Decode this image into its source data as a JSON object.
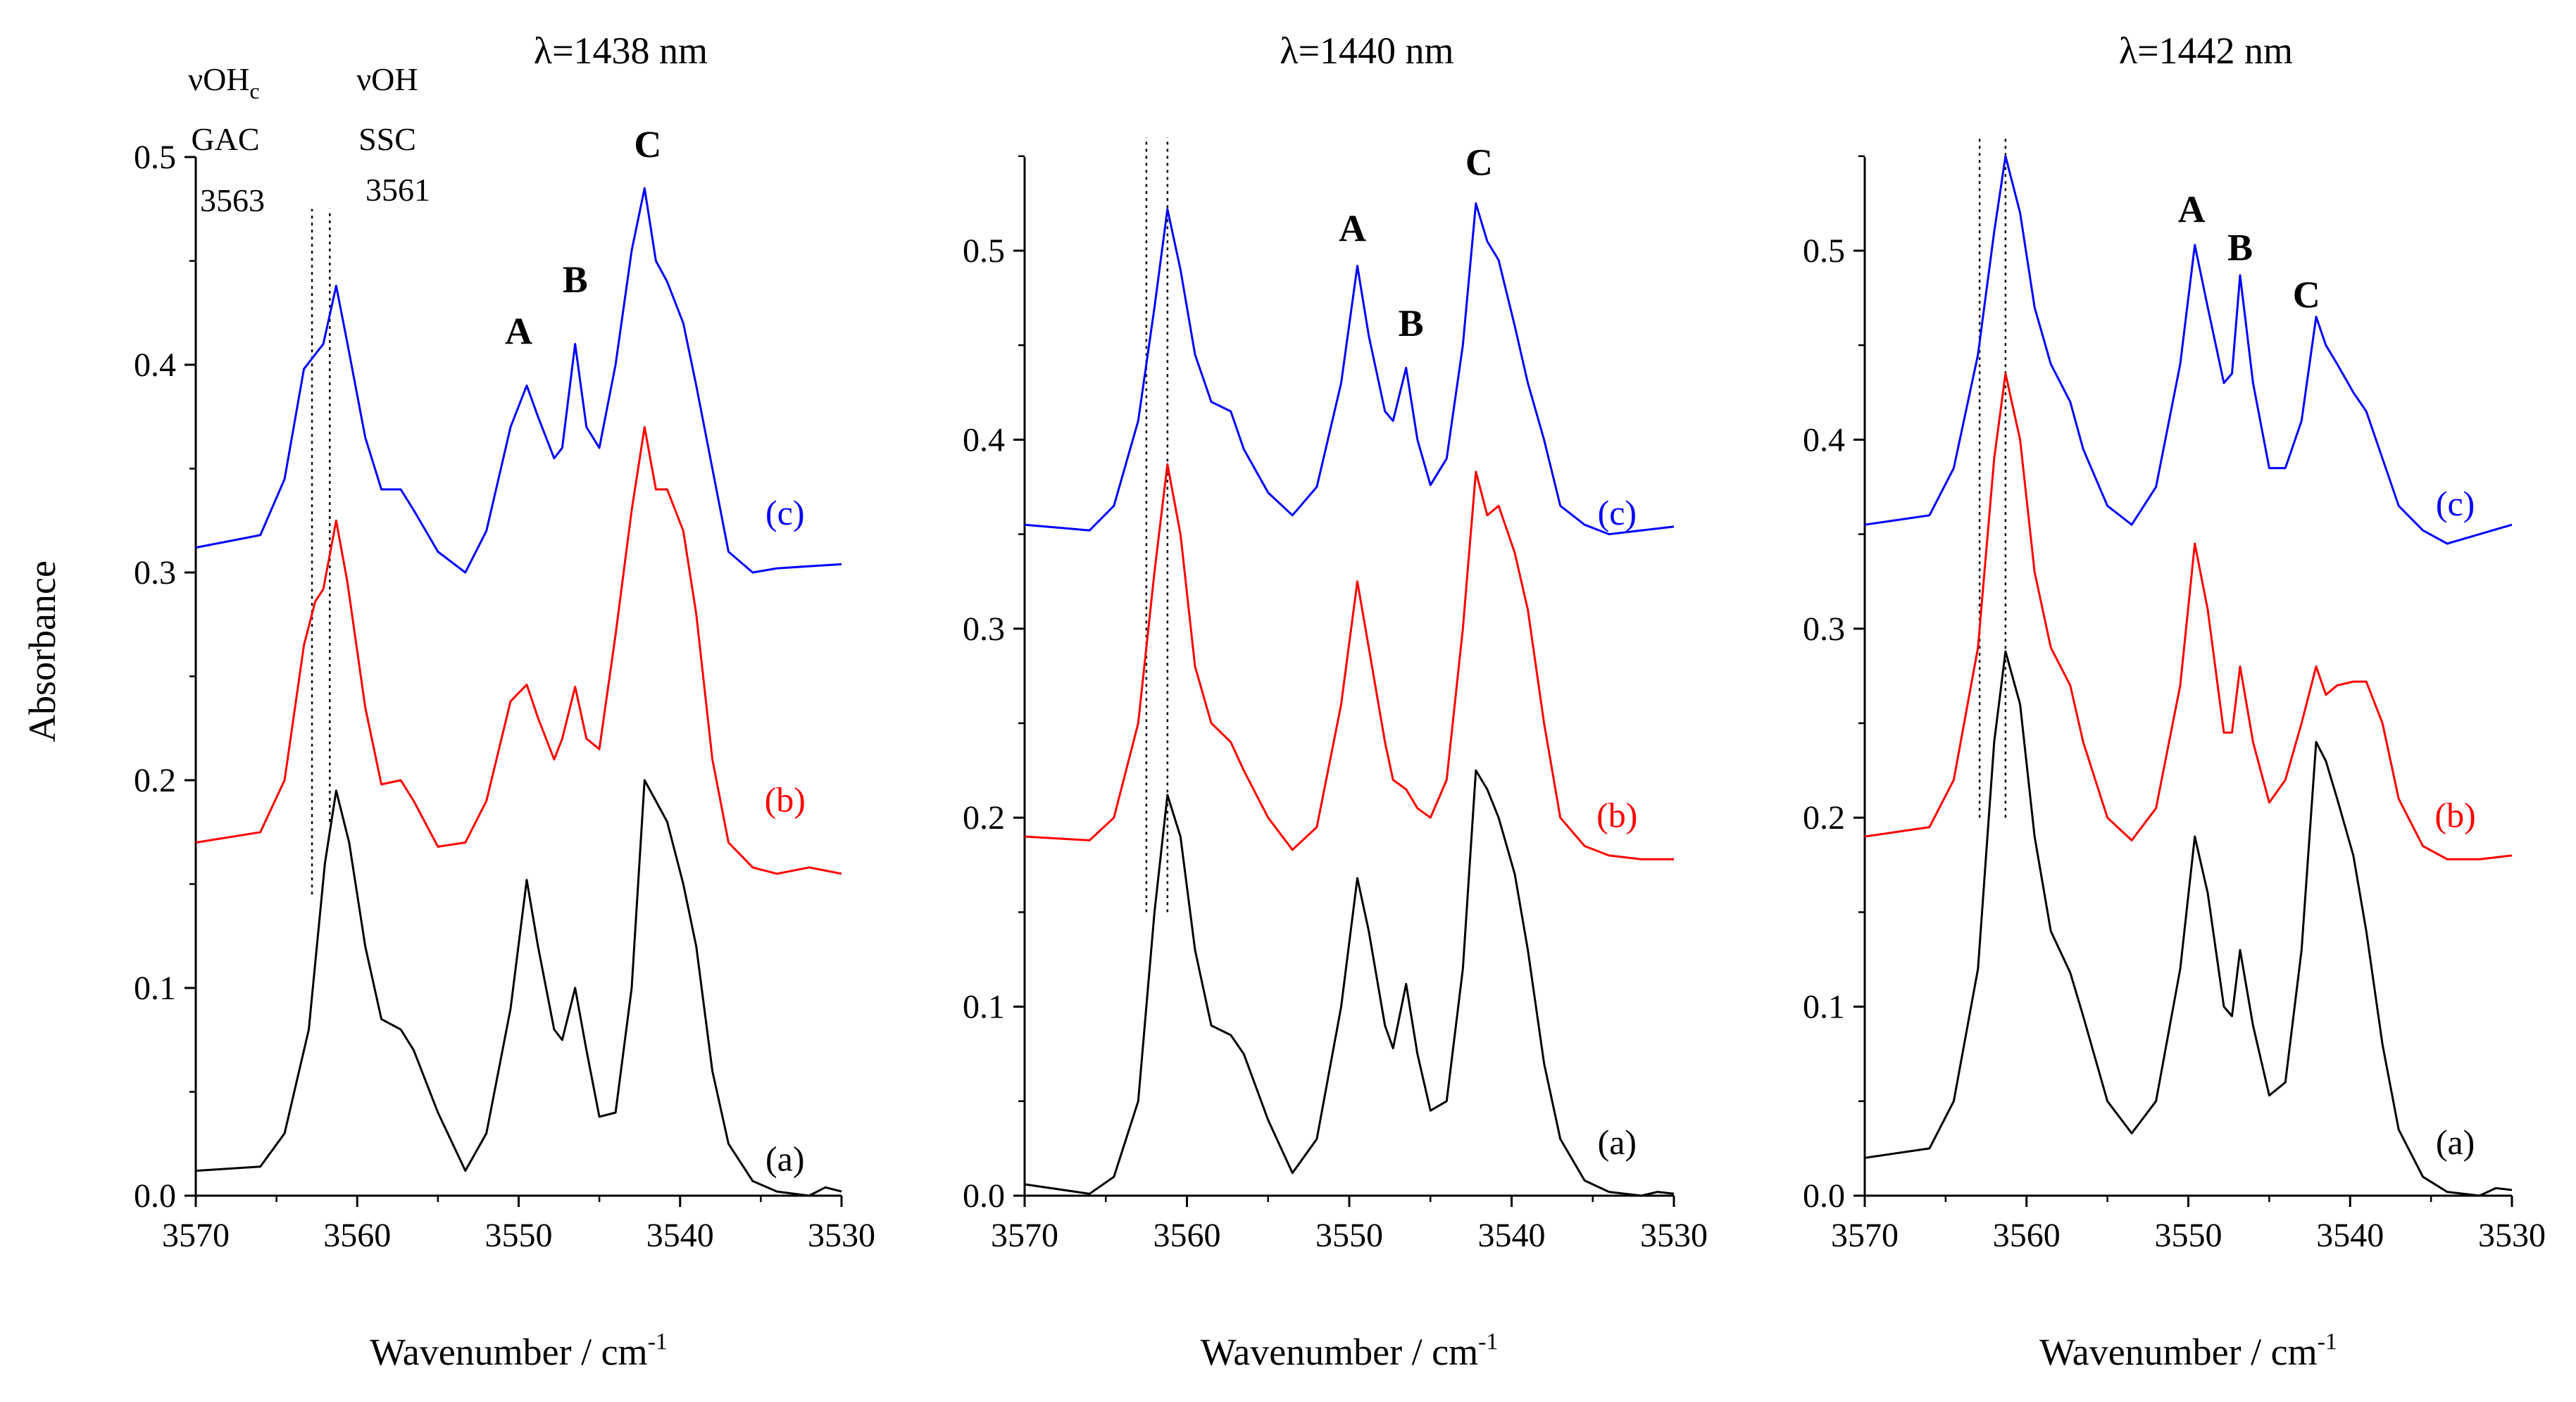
{
  "figure": {
    "ylabel": "Absorbance"
  },
  "annotations": {
    "gac": {
      "line1": "νOH",
      "sub": "c",
      "line2": "GAC",
      "line3": "3563"
    },
    "ssc": {
      "line1": "νOH",
      "line2": "SSC",
      "line3": "3561"
    }
  },
  "chart_data": [
    {
      "type": "line",
      "title": "λ=1438 nm",
      "xlabel": "Wavenumber / cm",
      "xlabel_sup": "-1",
      "xlim": [
        3570,
        3530
      ],
      "ylim": [
        0,
        0.5
      ],
      "xticks": [
        3570,
        3560,
        3550,
        3540,
        3530
      ],
      "yticks": [
        0.0,
        0.1,
        0.2,
        0.3,
        0.4,
        0.5
      ],
      "ytick_labels": [
        "0.0",
        "0.1",
        "0.2",
        "0.3",
        "0.4",
        "0.5"
      ],
      "vlines": [
        {
          "x": 3562.8,
          "y0": 0.145,
          "y1": 0.475
        },
        {
          "x": 3561.7,
          "y0": 0.18,
          "y1": 0.475
        }
      ],
      "peak_labels": [
        {
          "text": "A",
          "x": 3550.0,
          "y": 0.41
        },
        {
          "text": "B",
          "x": 3546.5,
          "y": 0.435
        },
        {
          "text": "C",
          "x": 3542.0,
          "y": 0.5
        }
      ],
      "series": [
        {
          "name": "(a)",
          "color": "#000000",
          "label_x": 3533.5,
          "label_y": 0.012,
          "x": [
            3570,
            3566,
            3564.5,
            3563,
            3562,
            3561.3,
            3560.5,
            3559.5,
            3558.5,
            3557.3,
            3556.5,
            3555,
            3553.3,
            3552,
            3550.5,
            3549.5,
            3548.8,
            3547.8,
            3547.3,
            3546.5,
            3545.8,
            3545,
            3544,
            3543,
            3542.2,
            3541.5,
            3540.8,
            3539.8,
            3539,
            3538,
            3537,
            3535.5,
            3534,
            3532,
            3531,
            3530
          ],
          "y": [
            0.012,
            0.014,
            0.03,
            0.08,
            0.16,
            0.195,
            0.17,
            0.12,
            0.085,
            0.08,
            0.07,
            0.04,
            0.012,
            0.03,
            0.09,
            0.152,
            0.12,
            0.08,
            0.075,
            0.1,
            0.07,
            0.038,
            0.04,
            0.1,
            0.2,
            0.19,
            0.18,
            0.15,
            0.12,
            0.06,
            0.025,
            0.007,
            0.002,
            0.0,
            0.004,
            0.002
          ]
        },
        {
          "name": "(b)",
          "color": "#ff0000",
          "label_x": 3533.5,
          "label_y": 0.185,
          "x": [
            3570,
            3566,
            3564.5,
            3563.3,
            3562.6,
            3562.1,
            3561.3,
            3560.6,
            3559.5,
            3558.5,
            3557.3,
            3556.5,
            3555,
            3553.3,
            3552,
            3550.5,
            3549.5,
            3548.8,
            3547.8,
            3547.3,
            3546.5,
            3545.8,
            3545,
            3544,
            3543,
            3542.2,
            3541.5,
            3540.8,
            3539.8,
            3539,
            3538,
            3537,
            3535.5,
            3534,
            3532,
            3530
          ],
          "y": [
            0.17,
            0.175,
            0.2,
            0.265,
            0.286,
            0.292,
            0.325,
            0.295,
            0.235,
            0.198,
            0.2,
            0.19,
            0.168,
            0.17,
            0.19,
            0.238,
            0.246,
            0.23,
            0.21,
            0.22,
            0.245,
            0.22,
            0.215,
            0.27,
            0.33,
            0.37,
            0.34,
            0.34,
            0.32,
            0.28,
            0.21,
            0.17,
            0.158,
            0.155,
            0.158,
            0.155
          ]
        },
        {
          "name": "(c)",
          "color": "#0000ff",
          "label_x": 3533.5,
          "label_y": 0.323,
          "x": [
            3570,
            3566,
            3564.5,
            3563.3,
            3562.6,
            3562.1,
            3561.3,
            3560.6,
            3559.5,
            3558.5,
            3557.3,
            3556.5,
            3555,
            3553.3,
            3552,
            3550.5,
            3549.5,
            3548.8,
            3547.8,
            3547.3,
            3546.5,
            3545.8,
            3545,
            3544,
            3543,
            3542.2,
            3541.5,
            3540.8,
            3539.8,
            3539,
            3538,
            3537,
            3535.5,
            3534,
            3532,
            3530
          ],
          "y": [
            0.312,
            0.318,
            0.345,
            0.398,
            0.405,
            0.41,
            0.438,
            0.41,
            0.365,
            0.34,
            0.34,
            0.33,
            0.31,
            0.3,
            0.32,
            0.37,
            0.39,
            0.375,
            0.355,
            0.36,
            0.41,
            0.37,
            0.36,
            0.4,
            0.455,
            0.485,
            0.45,
            0.44,
            0.42,
            0.39,
            0.35,
            0.31,
            0.3,
            0.302,
            0.303,
            0.304
          ]
        }
      ]
    },
    {
      "type": "line",
      "title": "λ=1440 nm",
      "xlabel": "Wavenumber / cm",
      "xlabel_sup": "-1",
      "xlim": [
        3570,
        3530
      ],
      "ylim": [
        0,
        0.55
      ],
      "xticks": [
        3570,
        3560,
        3550,
        3540,
        3530
      ],
      "yticks": [
        0.0,
        0.1,
        0.2,
        0.3,
        0.4,
        0.5
      ],
      "ytick_labels": [
        "0.0",
        "0.1",
        "0.2",
        "0.3",
        "0.4",
        "0.5"
      ],
      "vlines": [
        {
          "x": 3562.5,
          "y0": 0.15,
          "y1": 0.56
        },
        {
          "x": 3561.2,
          "y0": 0.15,
          "y1": 0.56
        }
      ],
      "peak_labels": [
        {
          "text": "A",
          "x": 3549.8,
          "y": 0.505
        },
        {
          "text": "B",
          "x": 3546.2,
          "y": 0.455
        },
        {
          "text": "C",
          "x": 3542.0,
          "y": 0.54
        }
      ],
      "series": [
        {
          "name": "(a)",
          "color": "#000000",
          "label_x": 3533.5,
          "label_y": 0.022,
          "x": [
            3570,
            3566,
            3564.5,
            3563,
            3562,
            3561.2,
            3560.4,
            3559.5,
            3558.5,
            3557.3,
            3556.5,
            3555,
            3553.5,
            3552,
            3550.5,
            3549.5,
            3548.8,
            3547.8,
            3547.3,
            3546.5,
            3545.8,
            3545,
            3544,
            3543,
            3542.2,
            3541.5,
            3540.8,
            3539.8,
            3539,
            3538,
            3537,
            3535.5,
            3534,
            3532,
            3531,
            3530
          ],
          "y": [
            0.006,
            0.001,
            0.01,
            0.05,
            0.15,
            0.212,
            0.19,
            0.13,
            0.09,
            0.085,
            0.075,
            0.04,
            0.012,
            0.03,
            0.1,
            0.168,
            0.14,
            0.09,
            0.078,
            0.112,
            0.075,
            0.045,
            0.05,
            0.12,
            0.225,
            0.215,
            0.2,
            0.17,
            0.13,
            0.07,
            0.03,
            0.008,
            0.002,
            0.0,
            0.002,
            0.001
          ]
        },
        {
          "name": "(b)",
          "color": "#ff0000",
          "label_x": 3533.5,
          "label_y": 0.195,
          "x": [
            3570,
            3566,
            3564.5,
            3563,
            3562,
            3561.2,
            3560.4,
            3559.5,
            3558.5,
            3557.3,
            3556.5,
            3555,
            3553.5,
            3552,
            3550.5,
            3549.5,
            3548.8,
            3547.8,
            3547.3,
            3546.5,
            3545.8,
            3545,
            3544,
            3543,
            3542.2,
            3541.5,
            3540.8,
            3539.8,
            3539,
            3538,
            3537,
            3535.5,
            3534,
            3532,
            3530
          ],
          "y": [
            0.19,
            0.188,
            0.2,
            0.25,
            0.33,
            0.387,
            0.35,
            0.28,
            0.25,
            0.24,
            0.225,
            0.2,
            0.183,
            0.195,
            0.26,
            0.325,
            0.29,
            0.24,
            0.22,
            0.215,
            0.205,
            0.2,
            0.22,
            0.3,
            0.383,
            0.36,
            0.365,
            0.34,
            0.31,
            0.25,
            0.2,
            0.185,
            0.18,
            0.178,
            0.178
          ]
        },
        {
          "name": "(c)",
          "color": "#0000ff",
          "label_x": 3533.5,
          "label_y": 0.355,
          "x": [
            3570,
            3566,
            3564.5,
            3563,
            3562,
            3561.2,
            3560.4,
            3559.5,
            3558.5,
            3557.3,
            3556.5,
            3555,
            3553.5,
            3552,
            3550.5,
            3549.5,
            3548.8,
            3547.8,
            3547.3,
            3546.5,
            3545.8,
            3545,
            3544,
            3543,
            3542.2,
            3541.5,
            3540.8,
            3539.8,
            3539,
            3538,
            3537,
            3535.5,
            3534,
            3532,
            3530
          ],
          "y": [
            0.355,
            0.352,
            0.365,
            0.41,
            0.47,
            0.522,
            0.49,
            0.445,
            0.42,
            0.415,
            0.395,
            0.372,
            0.36,
            0.375,
            0.43,
            0.492,
            0.455,
            0.415,
            0.41,
            0.438,
            0.4,
            0.376,
            0.39,
            0.45,
            0.525,
            0.505,
            0.495,
            0.46,
            0.43,
            0.4,
            0.365,
            0.355,
            0.35,
            0.352,
            0.354
          ]
        }
      ]
    },
    {
      "type": "line",
      "title": "λ=1442 nm",
      "xlabel": "Wavenumber / cm",
      "xlabel_sup": "-1",
      "xlim": [
        3570,
        3530
      ],
      "ylim": [
        0,
        0.55
      ],
      "xticks": [
        3570,
        3560,
        3550,
        3540,
        3530
      ],
      "yticks": [
        0.0,
        0.1,
        0.2,
        0.3,
        0.4,
        0.5
      ],
      "ytick_labels": [
        "0.0",
        "0.1",
        "0.2",
        "0.3",
        "0.4",
        "0.5"
      ],
      "vlines": [
        {
          "x": 3562.9,
          "y0": 0.2,
          "y1": 0.56
        },
        {
          "x": 3561.3,
          "y0": 0.2,
          "y1": 0.56
        }
      ],
      "peak_labels": [
        {
          "text": "A",
          "x": 3549.8,
          "y": 0.515
        },
        {
          "text": "B",
          "x": 3546.8,
          "y": 0.495
        },
        {
          "text": "C",
          "x": 3542.7,
          "y": 0.47
        }
      ],
      "series": [
        {
          "name": "(a)",
          "color": "#000000",
          "label_x": 3533.5,
          "label_y": 0.022,
          "x": [
            3570,
            3566,
            3564.5,
            3563,
            3562,
            3561.3,
            3560.4,
            3559.5,
            3558.5,
            3557.3,
            3556.5,
            3555,
            3553.5,
            3552,
            3550.5,
            3549.6,
            3548.8,
            3547.8,
            3547.3,
            3546.8,
            3546,
            3545,
            3544,
            3543,
            3542.1,
            3541.5,
            3540.8,
            3539.8,
            3539,
            3538,
            3537,
            3535.5,
            3534,
            3532,
            3531,
            3530
          ],
          "y": [
            0.02,
            0.025,
            0.05,
            0.12,
            0.24,
            0.288,
            0.26,
            0.19,
            0.14,
            0.118,
            0.095,
            0.05,
            0.033,
            0.05,
            0.12,
            0.19,
            0.16,
            0.1,
            0.095,
            0.13,
            0.09,
            0.053,
            0.06,
            0.13,
            0.24,
            0.23,
            0.21,
            0.18,
            0.14,
            0.08,
            0.035,
            0.01,
            0.002,
            0.0,
            0.004,
            0.003
          ]
        },
        {
          "name": "(b)",
          "color": "#ff0000",
          "label_x": 3533.5,
          "label_y": 0.195,
          "x": [
            3570,
            3566,
            3564.5,
            3563,
            3562,
            3561.3,
            3560.4,
            3559.5,
            3558.5,
            3557.3,
            3556.5,
            3555,
            3553.5,
            3552,
            3550.5,
            3549.6,
            3548.8,
            3547.8,
            3547.3,
            3546.8,
            3546,
            3545,
            3544,
            3543,
            3542.1,
            3541.5,
            3540.8,
            3539.8,
            3539,
            3538,
            3537,
            3535.5,
            3534,
            3532,
            3530
          ],
          "y": [
            0.19,
            0.195,
            0.22,
            0.29,
            0.39,
            0.435,
            0.4,
            0.33,
            0.29,
            0.27,
            0.24,
            0.2,
            0.188,
            0.205,
            0.27,
            0.345,
            0.31,
            0.245,
            0.245,
            0.28,
            0.24,
            0.208,
            0.22,
            0.25,
            0.28,
            0.265,
            0.27,
            0.272,
            0.272,
            0.25,
            0.21,
            0.185,
            0.178,
            0.178,
            0.18
          ]
        },
        {
          "name": "(c)",
          "color": "#0000ff",
          "label_x": 3533.5,
          "label_y": 0.36,
          "x": [
            3570,
            3566,
            3564.5,
            3563,
            3562,
            3561.3,
            3560.4,
            3559.5,
            3558.5,
            3557.3,
            3556.5,
            3555,
            3553.5,
            3552,
            3550.5,
            3549.6,
            3548.8,
            3547.8,
            3547.3,
            3546.8,
            3546,
            3545,
            3544,
            3543,
            3542.1,
            3541.5,
            3540.8,
            3539.8,
            3539,
            3538,
            3537,
            3535.5,
            3534,
            3532,
            3530
          ],
          "y": [
            0.355,
            0.36,
            0.385,
            0.445,
            0.51,
            0.55,
            0.52,
            0.47,
            0.44,
            0.42,
            0.395,
            0.365,
            0.355,
            0.375,
            0.44,
            0.503,
            0.47,
            0.43,
            0.435,
            0.487,
            0.43,
            0.385,
            0.385,
            0.41,
            0.465,
            0.45,
            0.44,
            0.425,
            0.415,
            0.39,
            0.365,
            0.352,
            0.345,
            0.35,
            0.355
          ]
        }
      ]
    }
  ]
}
